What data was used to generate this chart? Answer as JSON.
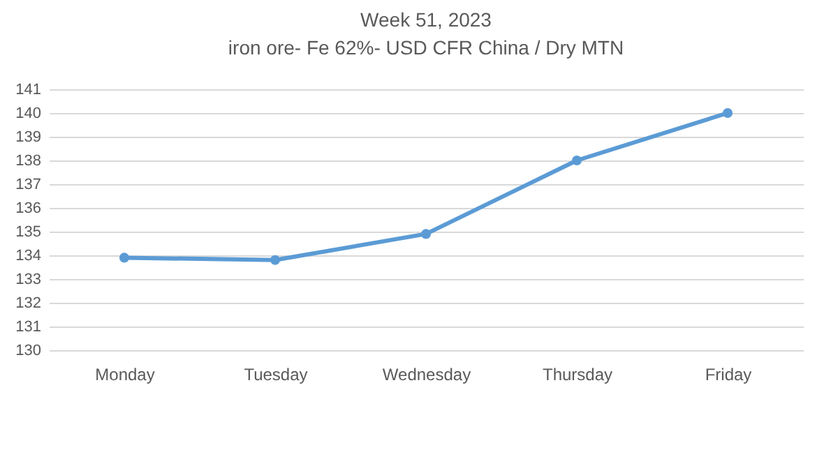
{
  "chart_data": {
    "type": "line",
    "title": "Week 51, 2023",
    "subtitle": "iron ore- Fe 62%- USD CFR China / Dry MTN",
    "categories": [
      "Monday",
      "Tuesday",
      "Wednesday",
      "Thursday",
      "Friday"
    ],
    "series": [
      {
        "color": "#5b9bd5",
        "values": [
          133.9,
          133.8,
          134.9,
          138,
          140
        ]
      }
    ],
    "ylim": [
      130,
      141
    ],
    "yticks": [
      130,
      131,
      132,
      133,
      134,
      135,
      136,
      137,
      138,
      139,
      140,
      141
    ],
    "grid": "y",
    "marker": "circle",
    "line_style": "solid"
  }
}
